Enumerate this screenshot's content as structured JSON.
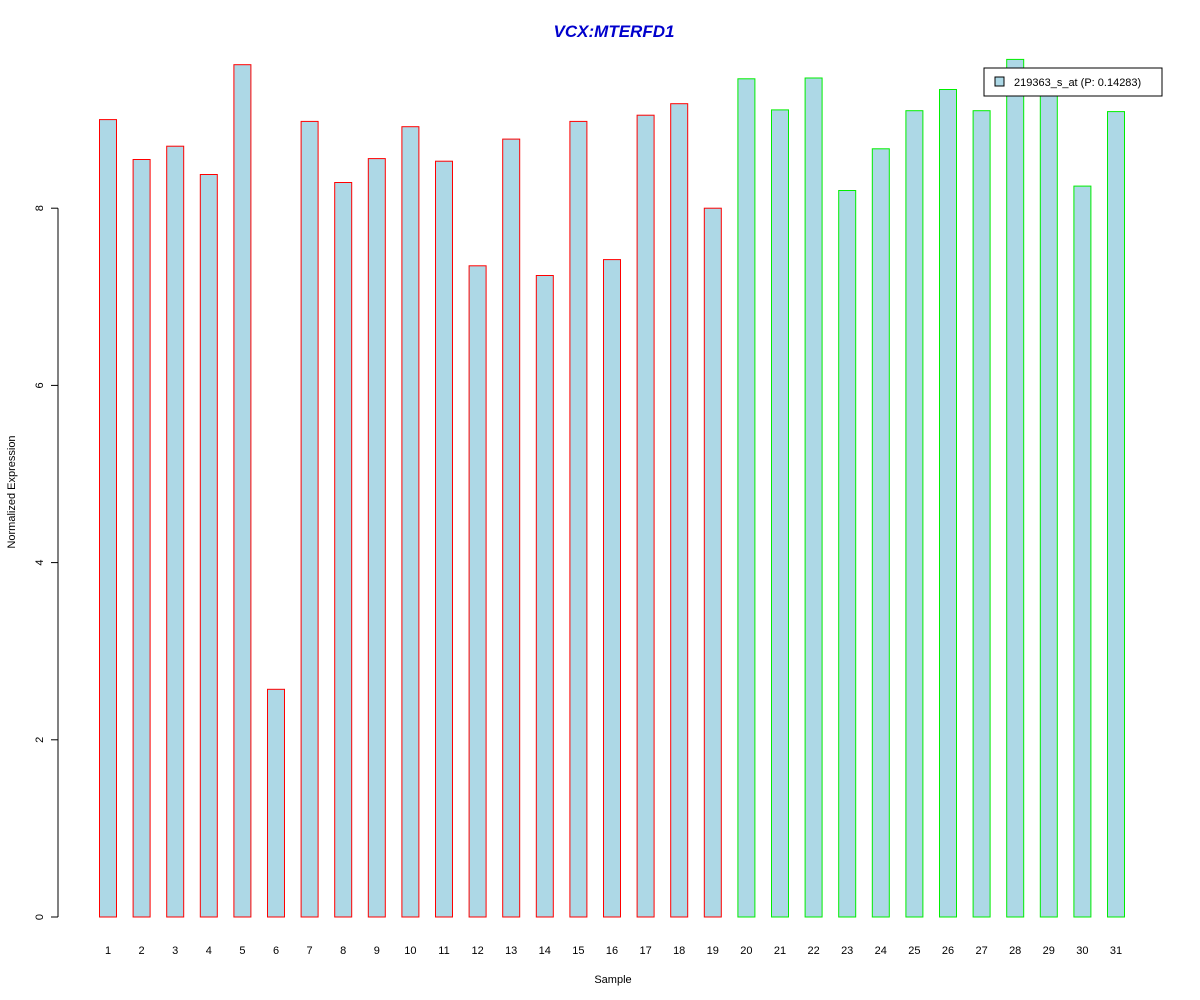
{
  "chart_data": {
    "type": "bar",
    "title": "VCX:MTERFD1",
    "xlabel": "Sample",
    "ylabel": "Normalized Expression",
    "ylim": [
      0,
      9.7
    ],
    "yticks": [
      0,
      2,
      4,
      6,
      8
    ],
    "categories": [
      "1",
      "2",
      "3",
      "4",
      "5",
      "6",
      "7",
      "8",
      "9",
      "10",
      "11",
      "12",
      "13",
      "14",
      "15",
      "16",
      "17",
      "18",
      "19",
      "20",
      "21",
      "22",
      "23",
      "24",
      "25",
      "26",
      "27",
      "28",
      "29",
      "30",
      "31"
    ],
    "values": [
      9.0,
      8.55,
      8.7,
      8.38,
      9.62,
      2.57,
      8.98,
      8.29,
      8.56,
      8.92,
      8.53,
      7.35,
      8.78,
      7.24,
      8.98,
      7.42,
      9.05,
      9.18,
      8.0,
      9.46,
      9.11,
      9.47,
      8.2,
      8.67,
      9.1,
      9.34,
      9.1,
      9.68,
      9.4,
      8.25,
      9.09
    ],
    "groups": [
      "red",
      "red",
      "red",
      "red",
      "red",
      "red",
      "red",
      "red",
      "red",
      "red",
      "red",
      "red",
      "red",
      "red",
      "red",
      "red",
      "red",
      "red",
      "red",
      "green",
      "green",
      "green",
      "green",
      "green",
      "green",
      "green",
      "green",
      "green",
      "green",
      "green",
      "green"
    ],
    "legend": {
      "label": "219363_s_at (P: 0.14283)",
      "position": "top-right"
    },
    "colors": {
      "fill": "#add8e6",
      "red": "#ff0000",
      "green": "#00ee00",
      "title": "#0000cc"
    },
    "grid": false
  }
}
